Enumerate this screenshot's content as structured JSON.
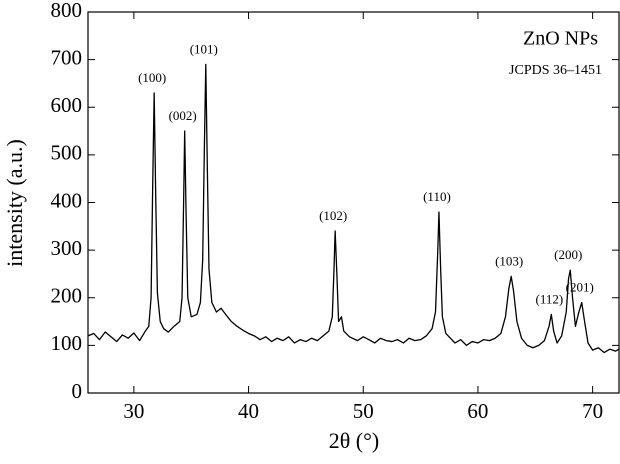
{
  "chart_data": {
    "type": "line",
    "title": "ZnO NPs",
    "subtitle": "JCPDS 36–1451",
    "title_color": "#1a1adb",
    "xlabel": "2θ (°)",
    "ylabel": "intensity (a.u.)",
    "xlim": [
      26,
      72.3
    ],
    "ylim": [
      0,
      800
    ],
    "xticks": [
      30,
      40,
      50,
      60,
      70
    ],
    "yticks": [
      0,
      100,
      200,
      300,
      400,
      500,
      600,
      700,
      800
    ],
    "series": [
      {
        "color": "#000000",
        "x": [
          26,
          26.5,
          27,
          27.5,
          28,
          28.5,
          29,
          29.5,
          30,
          30.5,
          31,
          31.3,
          31.5,
          31.65,
          31.77,
          31.9,
          32.05,
          32.3,
          32.6,
          33,
          33.5,
          34,
          34.2,
          34.35,
          34.43,
          34.55,
          34.7,
          35,
          35.5,
          35.8,
          36.0,
          36.15,
          36.27,
          36.4,
          36.55,
          36.8,
          37.2,
          37.6,
          38,
          38.5,
          39,
          39.5,
          40,
          40.5,
          41,
          41.5,
          42,
          42.5,
          43,
          43.5,
          44,
          44.5,
          45,
          45.5,
          46,
          46.5,
          47,
          47.3,
          47.45,
          47.55,
          47.7,
          47.85,
          48.1,
          48.3,
          48.8,
          49.5,
          50,
          50.5,
          51,
          51.5,
          52,
          52.5,
          53,
          53.5,
          54,
          54.5,
          55,
          55.5,
          56,
          56.3,
          56.5,
          56.6,
          56.75,
          56.9,
          57.2,
          57.6,
          58,
          58.5,
          59,
          59.5,
          60,
          60.5,
          61,
          61.5,
          62,
          62.4,
          62.7,
          62.9,
          63.1,
          63.4,
          63.8,
          64.3,
          64.8,
          65.3,
          65.8,
          66.2,
          66.4,
          66.6,
          66.9,
          67.3,
          67.7,
          67.9,
          68.05,
          68.25,
          68.5,
          68.8,
          69.05,
          69.3,
          69.6,
          70,
          70.5,
          71,
          71.5,
          72,
          72.3
        ],
        "values": [
          120,
          125,
          112,
          128,
          118,
          108,
          122,
          115,
          126,
          110,
          130,
          140,
          200,
          450,
          630,
          420,
          210,
          150,
          135,
          128,
          140,
          150,
          200,
          420,
          550,
          380,
          200,
          160,
          165,
          190,
          280,
          520,
          690,
          480,
          260,
          190,
          170,
          178,
          165,
          150,
          140,
          132,
          125,
          120,
          112,
          118,
          108,
          115,
          110,
          118,
          105,
          112,
          108,
          115,
          110,
          120,
          130,
          160,
          260,
          340,
          250,
          150,
          160,
          130,
          118,
          110,
          118,
          112,
          105,
          115,
          110,
          108,
          112,
          105,
          115,
          110,
          112,
          120,
          135,
          170,
          300,
          380,
          260,
          160,
          125,
          115,
          105,
          112,
          100,
          108,
          105,
          112,
          110,
          115,
          125,
          160,
          220,
          245,
          215,
          150,
          115,
          100,
          95,
          100,
          110,
          140,
          165,
          130,
          105,
          120,
          170,
          240,
          258,
          200,
          140,
          170,
          190,
          150,
          105,
          90,
          95,
          85,
          92,
          88,
          92
        ]
      }
    ],
    "annotations": [
      {
        "text": "(100)",
        "x": 31.77,
        "y": 630
      },
      {
        "text": "(002)",
        "x": 34.43,
        "y": 550
      },
      {
        "text": "(101)",
        "x": 36.27,
        "y": 690
      },
      {
        "text": "(102)",
        "x": 47.55,
        "y": 340
      },
      {
        "text": "(110)",
        "x": 56.6,
        "y": 380
      },
      {
        "text": "(103)",
        "x": 62.9,
        "y": 245
      },
      {
        "text": "(112)",
        "x": 66.4,
        "y": 165
      },
      {
        "text": "(200)",
        "x": 68.05,
        "y": 258
      },
      {
        "text": "(201)",
        "x": 69.05,
        "y": 190
      }
    ]
  }
}
